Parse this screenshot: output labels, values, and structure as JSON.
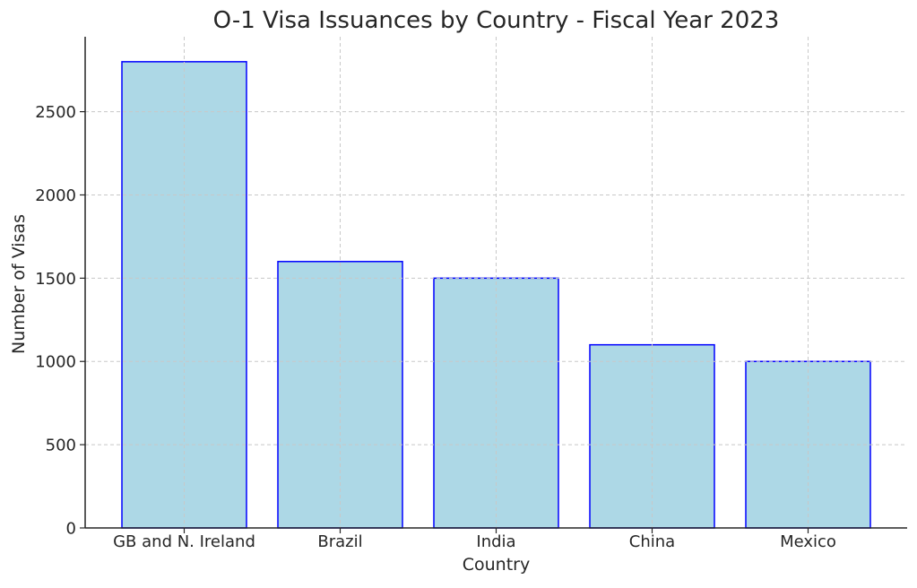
{
  "chart_data": {
    "type": "bar",
    "title": "O-1 Visa Issuances by Country - Fiscal Year 2023",
    "xlabel": "Country",
    "ylabel": "Number of Visas",
    "categories": [
      "GB and N. Ireland",
      "Brazil",
      "India",
      "China",
      "Mexico"
    ],
    "values": [
      2800,
      1600,
      1500,
      1100,
      1000
    ],
    "ylim": [
      0,
      2950
    ],
    "yticks": [
      0,
      500,
      1000,
      1500,
      2000,
      2500
    ],
    "grid": true,
    "legend": "none",
    "colors": {
      "bar_fill": "#add8e6",
      "bar_edge": "#0000ff",
      "grid": "#c8c8c8",
      "axis": "#262626",
      "text": "#262626"
    }
  }
}
